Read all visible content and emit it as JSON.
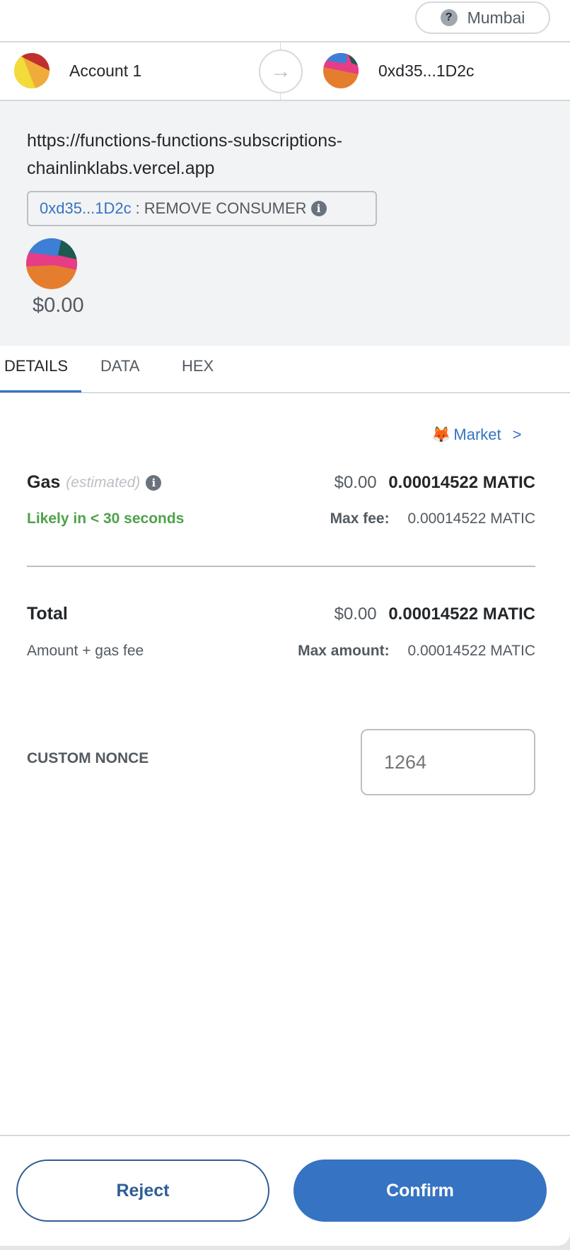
{
  "network": {
    "label": "Mumbai",
    "icon": "question-icon"
  },
  "from": {
    "name": "Account 1"
  },
  "to": {
    "address": "0xd35...1D2c"
  },
  "origin": {
    "url_line1": "https://functions-functions-subscriptions-",
    "url_line2": "chainlinklabs.vercel.app"
  },
  "method": {
    "address": "0xd35...1D2c",
    "separator": ":",
    "name": "REMOVE CONSUMER"
  },
  "value": {
    "fiat": "$0.00"
  },
  "tabs": [
    {
      "label": "DETAILS",
      "active": true
    },
    {
      "label": "DATA"
    },
    {
      "label": "HEX"
    }
  ],
  "market": {
    "label": "Market",
    "chevron": ">"
  },
  "gas": {
    "label": "Gas",
    "sub": "(estimated)",
    "fiat": "$0.00",
    "amount": "0.00014522 MATIC",
    "timing": "Likely in < 30 seconds",
    "max_fee_label": "Max fee:",
    "max_fee": "0.00014522 MATIC"
  },
  "total": {
    "label": "Total",
    "fiat": "$0.00",
    "amount": "0.00014522 MATIC",
    "sub": "Amount + gas fee",
    "max_label": "Max amount:",
    "max": "0.00014522 MATIC"
  },
  "nonce": {
    "label": "CUSTOM NONCE",
    "placeholder": "1264"
  },
  "footer": {
    "reject": "Reject",
    "confirm": "Confirm"
  },
  "colors": {
    "primary": "#3673c2",
    "success": "#4fa14a"
  }
}
